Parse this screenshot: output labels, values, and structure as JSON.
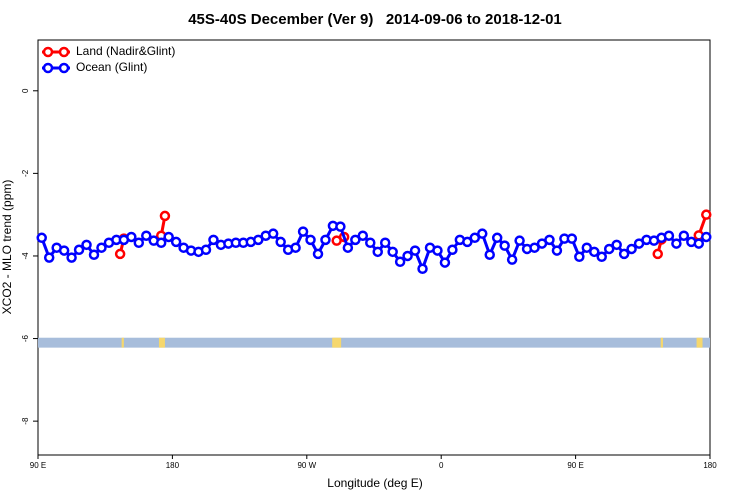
{
  "chart_data": {
    "type": "line",
    "title": "45S-40S December (Ver 9)   2014-09-06 to 2018-12-01",
    "x_label": "Longitude (deg E)",
    "y_label": "XCO2 - MLO trend (ppm)",
    "xlim": [
      90,
      540
    ],
    "ylim": [
      -8.82,
      1.23
    ],
    "xticks": [
      {
        "value": 90,
        "label": "90 E"
      },
      {
        "value": 180,
        "label": "180"
      },
      {
        "value": 270,
        "label": "90 W"
      },
      {
        "value": 360,
        "label": "0"
      },
      {
        "value": 450,
        "label": "90 E"
      },
      {
        "value": 540,
        "label": "180"
      }
    ],
    "yticks": [
      0,
      -2,
      -4,
      -6,
      -8
    ],
    "legend": "top-left",
    "series": [
      {
        "name": "Land (Nadir&Glint)",
        "color": "#ff0000",
        "x": [
          145,
          147.5,
          160,
          172.5,
          175,
          230,
          290,
          295,
          400,
          505,
          507.5,
          520,
          532.5,
          537.5
        ],
        "values": [
          -3.95,
          -3.58,
          null,
          -3.51,
          -3.03,
          null,
          -3.63,
          -3.54,
          null,
          -3.95,
          -3.6,
          null,
          -3.5,
          -3.0
        ]
      },
      {
        "name": "Ocean (Glint)",
        "color": "#0000ff",
        "x": [
          92.5,
          97.5,
          102.5,
          107.5,
          112.5,
          117.5,
          122.5,
          127.5,
          132.5,
          137.5,
          142.5,
          147.5,
          152.5,
          157.5,
          162.5,
          167.5,
          172.5,
          177.5,
          182.5,
          187.5,
          192.5,
          197.5,
          202.5,
          207.5,
          212.5,
          217.5,
          222.5,
          227.5,
          232.5,
          237.5,
          242.5,
          247.5,
          252.5,
          257.5,
          262.5,
          267.5,
          272.5,
          277.5,
          282.5,
          287.5,
          292.5,
          297.5,
          302.5,
          307.5,
          312.5,
          317.5,
          322.5,
          327.5,
          332.5,
          337.5,
          342.5,
          347.5,
          352.5,
          357.5,
          362.5,
          367.5,
          372.5,
          377.5,
          382.5,
          387.5,
          392.5,
          397.5,
          402.5,
          407.5,
          412.5,
          417.5,
          422.5,
          427.5,
          432.5,
          437.5,
          442.5,
          447.5,
          452.5,
          457.5,
          462.5,
          467.5,
          472.5,
          477.5,
          482.5,
          487.5,
          492.5,
          497.5,
          502.5,
          507.5,
          512.5,
          517.5,
          522.5,
          527.5,
          532.5,
          537.5
        ],
        "values": [
          -3.56,
          -4.04,
          -3.8,
          -3.87,
          -4.04,
          -3.85,
          -3.73,
          -3.97,
          -3.8,
          -3.68,
          -3.61,
          -3.61,
          -3.54,
          -3.68,
          -3.51,
          -3.63,
          -3.68,
          -3.54,
          -3.66,
          -3.8,
          -3.87,
          -3.9,
          -3.85,
          -3.61,
          -3.73,
          -3.7,
          -3.68,
          -3.68,
          -3.66,
          -3.61,
          -3.51,
          -3.46,
          -3.66,
          -3.85,
          -3.8,
          -3.41,
          -3.61,
          -3.95,
          -3.61,
          -3.27,
          -3.29,
          -3.8,
          -3.61,
          -3.51,
          -3.68,
          -3.9,
          -3.68,
          -3.9,
          -4.14,
          -4.0,
          -3.87,
          -4.31,
          -3.8,
          -3.87,
          -4.16,
          -3.85,
          -3.61,
          -3.66,
          -3.56,
          -3.46,
          -3.97,
          -3.56,
          -3.75,
          -4.09,
          -3.63,
          -3.83,
          -3.8,
          -3.7,
          -3.61,
          -3.87,
          -3.58,
          -3.58,
          -4.02,
          -3.8,
          -3.9,
          -4.02,
          -3.83,
          -3.73,
          -3.95,
          -3.83,
          -3.7,
          -3.61,
          -3.63,
          -3.56,
          -3.51,
          -3.7,
          -3.51,
          -3.66,
          -3.7,
          -3.54
        ]
      }
    ],
    "land_mask": {
      "y": [
        -6.22,
        -5.98
      ],
      "ocean_color": "#a7bddb",
      "land_color": "#f5d76e",
      "land_ranges": [
        [
          146,
          147.5
        ],
        [
          171,
          175
        ],
        [
          287,
          293
        ],
        [
          507,
          508.5
        ],
        [
          531,
          535
        ]
      ]
    }
  }
}
